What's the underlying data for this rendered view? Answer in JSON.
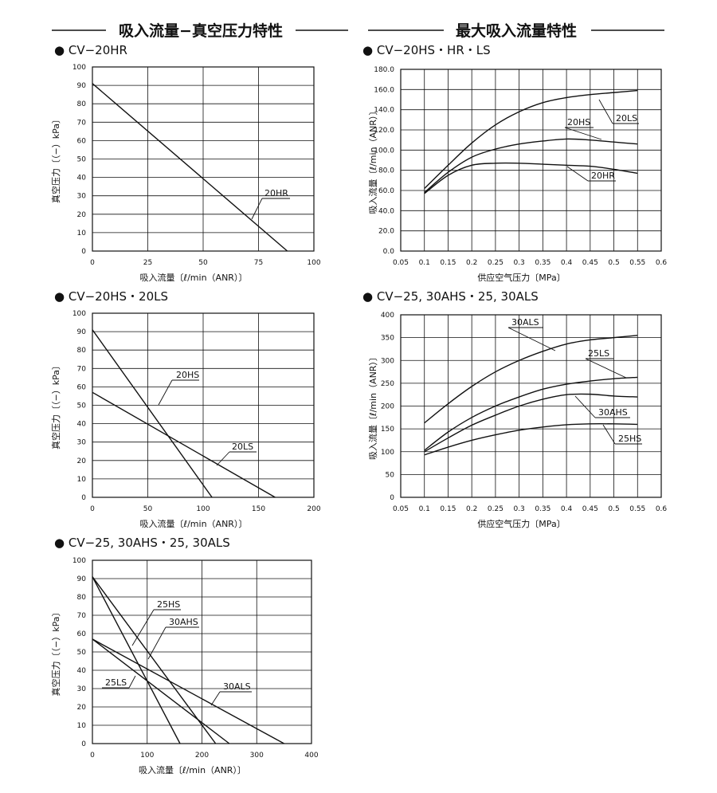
{
  "headings": {
    "left": "吸入流量−真空压力特性",
    "right": "最大吸入流量特性"
  },
  "chart_data": [
    {
      "type": "line",
      "title": "● CV−20HR",
      "xlabel": "吸入流量〔ℓ/min（ANR）〕",
      "ylabel": "真空压力〔（−）kPa〕",
      "xlim": [
        0,
        100
      ],
      "ylim": [
        0,
        100
      ],
      "x_ticks": [
        0,
        25,
        50,
        75,
        100
      ],
      "y_ticks": [
        0,
        10,
        20,
        30,
        40,
        50,
        60,
        70,
        80,
        90,
        100
      ],
      "series": [
        {
          "name": "20HR",
          "points": [
            [
              0,
              91
            ],
            [
              88,
              0
            ]
          ]
        }
      ]
    },
    {
      "type": "line",
      "title": "● CV−20HS・20LS",
      "xlabel": "吸入流量〔ℓ/min（ANR）〕",
      "ylabel": "真空压力〔（−）kPa〕",
      "xlim": [
        0,
        200
      ],
      "ylim": [
        0,
        100
      ],
      "x_ticks": [
        0,
        50,
        100,
        150,
        200
      ],
      "y_ticks": [
        0,
        10,
        20,
        30,
        40,
        50,
        60,
        70,
        80,
        90,
        100
      ],
      "series": [
        {
          "name": "20HS",
          "points": [
            [
              0,
              91
            ],
            [
              108,
              0
            ]
          ]
        },
        {
          "name": "20LS",
          "points": [
            [
              0,
              57
            ],
            [
              165,
              0
            ]
          ]
        }
      ]
    },
    {
      "type": "line",
      "title": "● CV−25, 30AHS・25, 30ALS",
      "xlabel": "吸入流量〔ℓ/min（ANR）〕",
      "ylabel": "真空压力〔（−）kPa〕",
      "xlim": [
        0,
        400
      ],
      "ylim": [
        0,
        100
      ],
      "x_ticks": [
        0,
        100,
        200,
        300,
        400
      ],
      "y_ticks": [
        0,
        10,
        20,
        30,
        40,
        50,
        60,
        70,
        80,
        90,
        100
      ],
      "series": [
        {
          "name": "25HS",
          "points": [
            [
              0,
              91
            ],
            [
              160,
              0
            ]
          ]
        },
        {
          "name": "30AHS",
          "points": [
            [
              0,
              91
            ],
            [
              225,
              0
            ]
          ]
        },
        {
          "name": "25LS",
          "points": [
            [
              0,
              57
            ],
            [
              250,
              0
            ]
          ]
        },
        {
          "name": "30ALS",
          "points": [
            [
              0,
              57
            ],
            [
              350,
              0
            ]
          ]
        }
      ]
    },
    {
      "type": "line",
      "title": "● CV−20HS・HR・LS",
      "xlabel": "供应空气压力〔MPa〕",
      "ylabel": "吸入流量〔ℓ/min（ANR）〕",
      "xlim": [
        0.05,
        0.6
      ],
      "ylim": [
        0,
        180
      ],
      "x_ticks": [
        "0.05",
        "0.1",
        "0.15",
        "0.2",
        "0.25",
        "0.3",
        "0.35",
        "0.4",
        "0.45",
        "0.5",
        "0.55",
        "0.6"
      ],
      "y_ticks": [
        "0.0",
        "20.0",
        "40.0",
        "60.0",
        "80.0",
        "100.0",
        "120.0",
        "140.0",
        "160.0",
        "180.0"
      ],
      "series": [
        {
          "name": "20LS",
          "points": [
            [
              0.1,
              62
            ],
            [
              0.15,
              85
            ],
            [
              0.2,
              107
            ],
            [
              0.25,
              125
            ],
            [
              0.3,
              138
            ],
            [
              0.35,
              147
            ],
            [
              0.4,
              152
            ],
            [
              0.45,
              155
            ],
            [
              0.5,
              157
            ],
            [
              0.55,
              159
            ]
          ]
        },
        {
          "name": "20HS",
          "points": [
            [
              0.1,
              58
            ],
            [
              0.15,
              78
            ],
            [
              0.2,
              93
            ],
            [
              0.25,
              101
            ],
            [
              0.3,
              106
            ],
            [
              0.35,
              109
            ],
            [
              0.4,
              111
            ],
            [
              0.45,
              110
            ],
            [
              0.5,
              108
            ],
            [
              0.55,
              106
            ]
          ]
        },
        {
          "name": "20HR",
          "points": [
            [
              0.1,
              57
            ],
            [
              0.15,
              75
            ],
            [
              0.2,
              85
            ],
            [
              0.25,
              87
            ],
            [
              0.3,
              87
            ],
            [
              0.35,
              86
            ],
            [
              0.4,
              85
            ],
            [
              0.45,
              84
            ],
            [
              0.5,
              81
            ],
            [
              0.55,
              77
            ]
          ]
        }
      ]
    },
    {
      "type": "line",
      "title": "● CV−25, 30AHS・25, 30ALS",
      "xlabel": "供应空气压力〔MPa〕",
      "ylabel": "吸入流量〔ℓ/min（ANR）〕",
      "xlim": [
        0.05,
        0.6
      ],
      "ylim": [
        0,
        400
      ],
      "x_ticks": [
        "0.05",
        "0.1",
        "0.15",
        "0.2",
        "0.25",
        "0.3",
        "0.35",
        "0.4",
        "0.45",
        "0.5",
        "0.55",
        "0.6"
      ],
      "y_ticks": [
        "0",
        "50",
        "100",
        "150",
        "200",
        "250",
        "300",
        "350",
        "400"
      ],
      "series": [
        {
          "name": "30ALS",
          "points": [
            [
              0.1,
              163
            ],
            [
              0.15,
              205
            ],
            [
              0.2,
              243
            ],
            [
              0.25,
              275
            ],
            [
              0.3,
              300
            ],
            [
              0.35,
              320
            ],
            [
              0.4,
              336
            ],
            [
              0.45,
              345
            ],
            [
              0.5,
              350
            ],
            [
              0.55,
              355
            ]
          ]
        },
        {
          "name": "25LS",
          "points": [
            [
              0.1,
              103
            ],
            [
              0.15,
              143
            ],
            [
              0.2,
              175
            ],
            [
              0.25,
              200
            ],
            [
              0.3,
              220
            ],
            [
              0.35,
              237
            ],
            [
              0.4,
              248
            ],
            [
              0.45,
              255
            ],
            [
              0.5,
              260
            ],
            [
              0.55,
              263
            ]
          ]
        },
        {
          "name": "30AHS",
          "points": [
            [
              0.1,
              100
            ],
            [
              0.15,
              130
            ],
            [
              0.2,
              158
            ],
            [
              0.25,
              180
            ],
            [
              0.3,
              200
            ],
            [
              0.35,
              215
            ],
            [
              0.4,
              225
            ],
            [
              0.45,
              226
            ],
            [
              0.5,
              222
            ],
            [
              0.55,
              220
            ]
          ]
        },
        {
          "name": "25HS",
          "points": [
            [
              0.1,
              93
            ],
            [
              0.15,
              110
            ],
            [
              0.2,
              125
            ],
            [
              0.25,
              137
            ],
            [
              0.3,
              147
            ],
            [
              0.35,
              154
            ],
            [
              0.4,
              159
            ],
            [
              0.45,
              161
            ],
            [
              0.5,
              161
            ],
            [
              0.55,
              160
            ]
          ]
        }
      ]
    }
  ]
}
